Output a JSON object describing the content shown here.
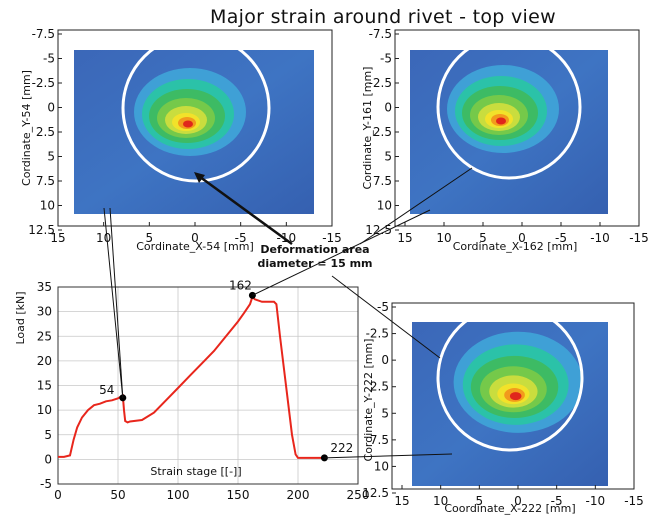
{
  "page": {
    "title": "Major strain around rivet - top view"
  },
  "annotation": {
    "line1": "Deformation area",
    "line2": "diameter = 15 mm"
  },
  "colors": {
    "blue_bg": "#3b6fbe",
    "circle": "#ffffff",
    "load_curve": "#e8261c",
    "marker": "#000000"
  },
  "strain_maps": [
    {
      "id": "stage54",
      "xlabel": "Cordinate_X-54 [mm]",
      "ylabel": "Cordinate_Y-54 [mm]",
      "x_ticks": [
        "15",
        "10",
        "5",
        "0",
        "-5",
        "-10",
        "-15"
      ],
      "y_ticks": [
        "-7.5",
        "-5",
        "-2.5",
        "0",
        "2.5",
        "5",
        "7.5",
        "10",
        "12.5"
      ],
      "xlim": [
        15,
        -15
      ],
      "ylim": [
        -7.5,
        12.5
      ]
    },
    {
      "id": "stage162",
      "xlabel": "Cordinate_X-162 [mm]",
      "ylabel": "Cordinate_Y-161 [mm]",
      "x_ticks": [
        "15",
        "10",
        "5",
        "0",
        "-5",
        "-10",
        "-15"
      ],
      "y_ticks": [
        "-7.5",
        "-5",
        "-2.5",
        "0",
        "2.5",
        "5",
        "7.5",
        "10",
        "12.5"
      ],
      "xlim": [
        15,
        -15
      ],
      "ylim": [
        -7.5,
        12.5
      ]
    },
    {
      "id": "stage222",
      "xlabel": "Coordinate_X-222 [mm]",
      "ylabel": "Cordinate_Y-222 [mm]",
      "x_ticks": [
        "15",
        "10",
        "5",
        "0",
        "-5",
        "-10",
        "-15"
      ],
      "y_ticks": [
        "-5",
        "-2.5",
        "0",
        "2.5",
        "5",
        "7.5",
        "10",
        "12.5"
      ],
      "xlim": [
        15,
        -15
      ],
      "ylim": [
        -7.5,
        12.5
      ]
    }
  ],
  "chart_data": {
    "type": "line",
    "xlabel": "Strain stage [[-]]",
    "ylabel": "Load [kN]",
    "xlim": [
      0,
      250
    ],
    "ylim": [
      -5,
      35
    ],
    "x_ticks": [
      0,
      50,
      100,
      150,
      200,
      250
    ],
    "y_ticks": [
      -5,
      0,
      5,
      10,
      15,
      20,
      25,
      30,
      35
    ],
    "grid": true,
    "series": [
      {
        "x": [
          0,
          5,
          10,
          13,
          16,
          20,
          25,
          30,
          35,
          40,
          45,
          50,
          52,
          54,
          55,
          56,
          58,
          60,
          70,
          80,
          90,
          100,
          110,
          120,
          130,
          140,
          150,
          155,
          160,
          162,
          164,
          170,
          180,
          182,
          185,
          190,
          195,
          198,
          200,
          210,
          222
        ],
        "y": [
          0.5,
          0.5,
          0.8,
          4,
          6.5,
          8.5,
          10,
          11,
          11.3,
          11.8,
          12,
          12.4,
          12.7,
          13,
          10,
          7.8,
          7.5,
          7.7,
          8,
          9.5,
          12,
          14.5,
          17,
          19.5,
          22,
          25,
          28,
          29.7,
          31.5,
          33,
          32.5,
          32,
          32,
          31.5,
          25,
          15,
          5,
          1,
          0.3,
          0.3,
          0.3
        ]
      }
    ],
    "markers": [
      {
        "label": "54",
        "x": 54,
        "y": 12.5
      },
      {
        "label": "162",
        "x": 162,
        "y": 33.3
      },
      {
        "label": "222",
        "x": 222,
        "y": 0.3
      }
    ]
  }
}
